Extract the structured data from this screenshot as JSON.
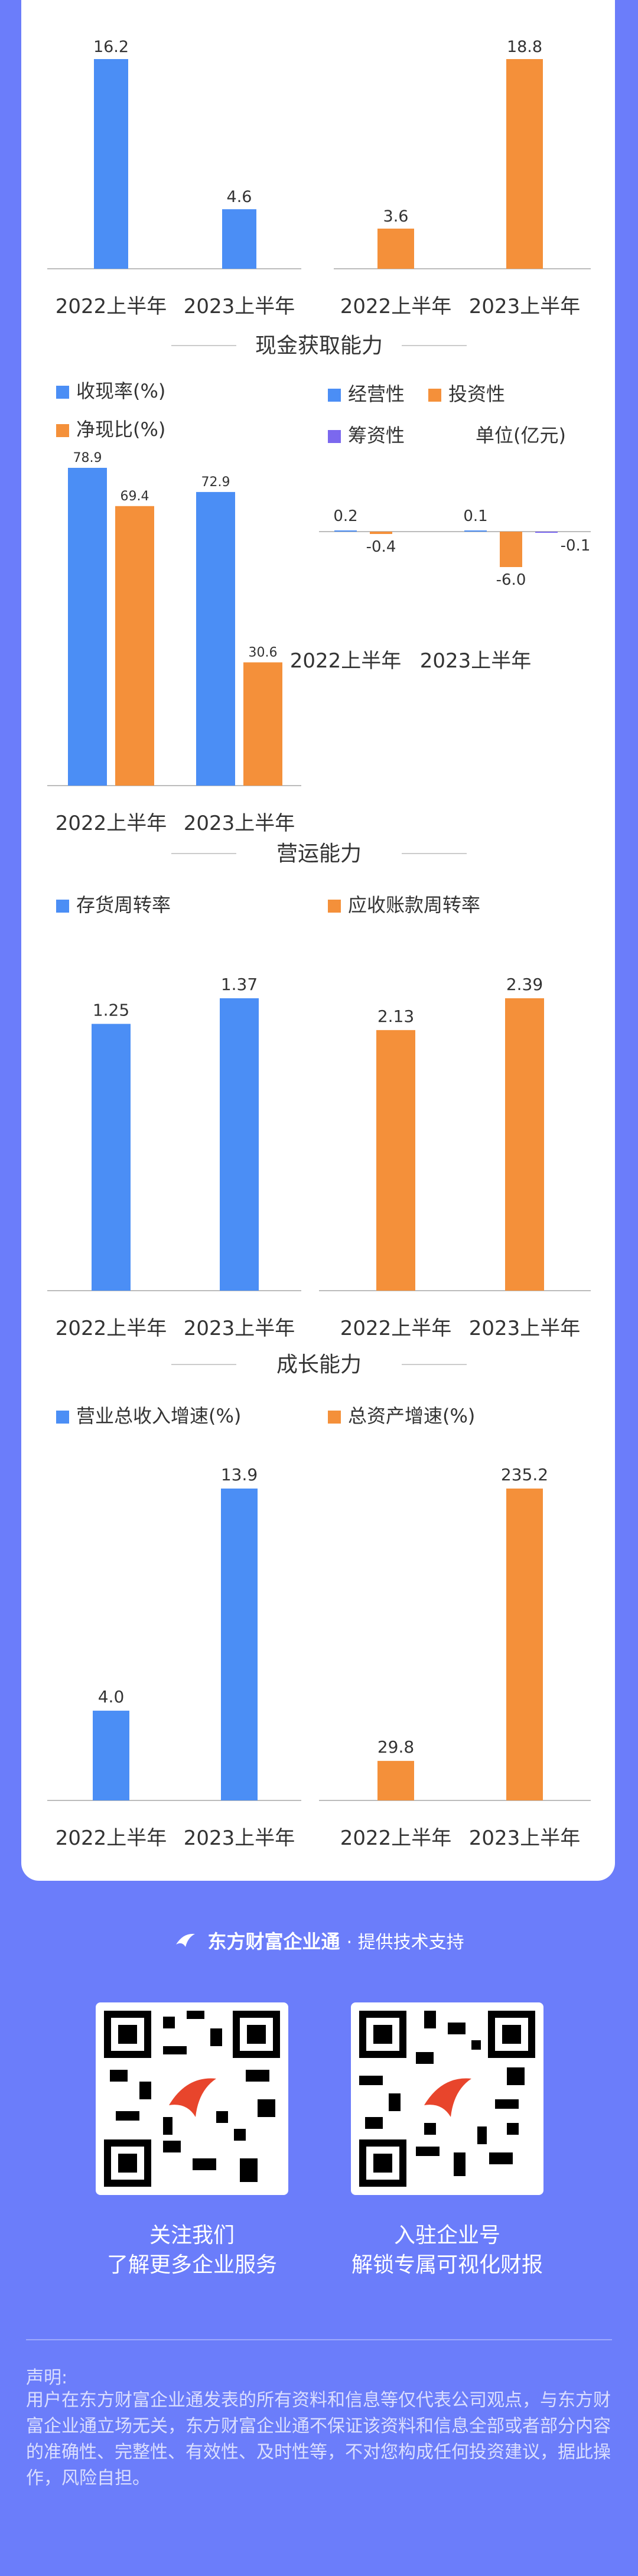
{
  "colors": {
    "blue": "#4b8ef5",
    "orange": "#f4903a",
    "purple": "#7b68ee",
    "page_bg": "#6b7dfa",
    "axis": "#bcbcbc",
    "text": "#333333"
  },
  "sections": {
    "cash": "现金获取能力",
    "operating": "营运能力",
    "growth": "成长能力"
  },
  "chart_data": [
    {
      "type": "bar",
      "categories": [
        "2022上半年",
        "2023上半年"
      ],
      "series": [
        {
          "values": [
            16.2,
            4.6
          ],
          "color": "#4b8ef5"
        }
      ]
    },
    {
      "type": "bar",
      "categories": [
        "2022上半年",
        "2023上半年"
      ],
      "series": [
        {
          "values": [
            3.6,
            18.8
          ],
          "color": "#f4903a"
        }
      ]
    },
    {
      "type": "bar",
      "categories": [
        "2022上半年",
        "2023上半年"
      ],
      "series": [
        {
          "name": "收现率(%)",
          "values": [
            78.9,
            72.9
          ],
          "color": "#4b8ef5"
        },
        {
          "name": "净现比(%)",
          "values": [
            69.4,
            30.6
          ],
          "color": "#f4903a"
        }
      ]
    },
    {
      "type": "bar",
      "categories": [
        "2022上半年",
        "2023上半年"
      ],
      "unit": "单位(亿元)",
      "series": [
        {
          "name": "经营性",
          "values": [
            0.2,
            0.1
          ],
          "color": "#4b8ef5"
        },
        {
          "name": "投资性",
          "values": [
            -0.4,
            -6.0
          ],
          "color": "#f4903a"
        },
        {
          "name": "筹资性",
          "values": [
            0.0,
            -0.1
          ],
          "color": "#7b68ee"
        }
      ]
    },
    {
      "type": "bar",
      "categories": [
        "2022上半年",
        "2023上半年"
      ],
      "series": [
        {
          "name": "存货周转率",
          "values": [
            1.25,
            1.37
          ],
          "color": "#4b8ef5"
        }
      ]
    },
    {
      "type": "bar",
      "categories": [
        "2022上半年",
        "2023上半年"
      ],
      "series": [
        {
          "name": "应收账款周转率",
          "values": [
            2.13,
            2.39
          ],
          "color": "#f4903a"
        }
      ]
    },
    {
      "type": "bar",
      "categories": [
        "2022上半年",
        "2023上半年"
      ],
      "series": [
        {
          "name": "营业总收入增速(%)",
          "values": [
            4.0,
            13.9
          ],
          "color": "#4b8ef5"
        }
      ]
    },
    {
      "type": "bar",
      "categories": [
        "2022上半年",
        "2023上半年"
      ],
      "series": [
        {
          "name": "总资产增速(%)",
          "values": [
            29.8,
            235.2
          ],
          "color": "#f4903a"
        }
      ]
    }
  ],
  "footer": {
    "brand": "东方财富企业通",
    "support": "· 提供技术支持",
    "qr_left_caption_1": "关注我们",
    "qr_left_caption_2": "了解更多企业服务",
    "qr_right_caption_1": "入驻企业号",
    "qr_right_caption_2": "解锁专属可视化财报",
    "disclaimer_title": "声明:",
    "disclaimer_text": "用户在东方财富企业通发表的所有资料和信息等仅代表公司观点，与东方财富企业通立场无关，东方财富企业通不保证该资料和信息全部或者部分内容的准确性、完整性、有效性、及时性等，不对您构成任何投资建议，据此操作，风险自担。"
  }
}
